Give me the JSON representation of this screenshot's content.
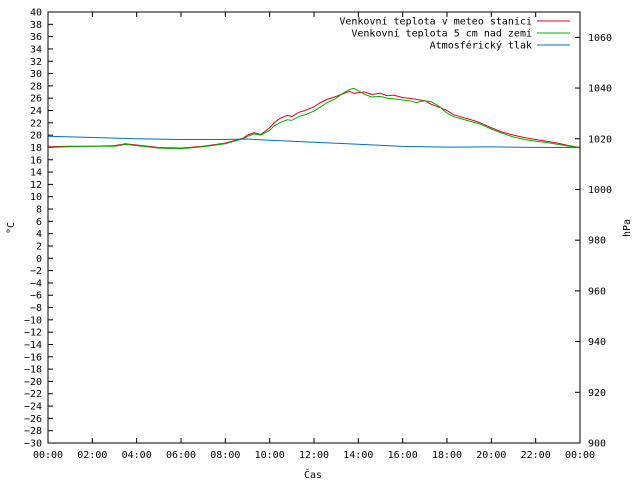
{
  "chart_data": {
    "type": "line",
    "xlabel": "Čas",
    "ylabel": "°C",
    "y2label": "hPa",
    "x_ticks": [
      "00:00",
      "02:00",
      "04:00",
      "06:00",
      "08:00",
      "10:00",
      "12:00",
      "14:00",
      "16:00",
      "18:00",
      "20:00",
      "22:00",
      "00:00"
    ],
    "xlim_hours": [
      0,
      24
    ],
    "ylim": [
      -30,
      40
    ],
    "y_ticks": [
      40,
      38,
      36,
      34,
      32,
      30,
      28,
      26,
      24,
      22,
      20,
      18,
      16,
      14,
      12,
      10,
      8,
      6,
      4,
      2,
      0,
      -2,
      -4,
      -6,
      -8,
      -10,
      -12,
      -14,
      -16,
      -18,
      -20,
      -22,
      -24,
      -26,
      -28,
      -30
    ],
    "y2lim": [
      900,
      1070
    ],
    "y2_ticks": [
      1060,
      1040,
      1020,
      1000,
      980,
      960,
      940,
      920,
      900
    ],
    "legend_position": "top-right",
    "series": [
      {
        "name": "Venkovní teplota v meteo stanici",
        "color": "#e0001f",
        "axis": "left",
        "x": [
          0,
          1,
          2,
          3,
          3.5,
          4,
          5,
          6,
          7,
          8,
          8.8,
          9,
          9.3,
          9.6,
          10,
          10.2,
          10.5,
          10.8,
          11,
          11.3,
          11.6,
          12,
          12.3,
          12.6,
          13,
          13.3,
          13.6,
          13.8,
          14,
          14.3,
          14.6,
          15,
          15.3,
          15.6,
          16,
          16.3,
          16.6,
          17,
          17.3,
          17.6,
          18,
          18.3,
          18.6,
          19,
          19.5,
          20,
          20.5,
          21,
          21.5,
          22,
          22.5,
          23,
          23.5,
          24
        ],
        "y": [
          18.1,
          18.2,
          18.2,
          18.3,
          18.6,
          18.4,
          18.0,
          17.9,
          18.2,
          18.7,
          19.5,
          20.0,
          20.4,
          20.1,
          21.2,
          22.0,
          22.8,
          23.2,
          23.0,
          23.7,
          24.0,
          24.6,
          25.3,
          25.8,
          26.3,
          26.7,
          27.1,
          26.8,
          26.9,
          27.0,
          26.6,
          26.8,
          26.4,
          26.5,
          26.1,
          26.0,
          25.8,
          25.6,
          25.0,
          24.6,
          24.0,
          23.3,
          23.0,
          22.6,
          22.0,
          21.2,
          20.5,
          20.0,
          19.6,
          19.3,
          19.0,
          18.7,
          18.3,
          18.0
        ]
      },
      {
        "name": "Venkovní teplota 5 cm nad zemí",
        "color": "#00b000",
        "axis": "left",
        "x": [
          0,
          1,
          2,
          3,
          3.5,
          4,
          5,
          6,
          7,
          8,
          8.8,
          9,
          9.3,
          9.6,
          10,
          10.2,
          10.5,
          10.8,
          11,
          11.3,
          11.6,
          12,
          12.3,
          12.6,
          13,
          13.3,
          13.6,
          13.8,
          14,
          14.3,
          14.6,
          15,
          15.3,
          15.6,
          16,
          16.3,
          16.6,
          17,
          17.3,
          17.6,
          18,
          18.3,
          18.6,
          19,
          19.5,
          20,
          20.5,
          21,
          21.5,
          22,
          22.5,
          23,
          23.5,
          24
        ],
        "y": [
          18.0,
          18.1,
          18.2,
          18.2,
          18.5,
          18.3,
          17.9,
          17.8,
          18.1,
          18.6,
          19.4,
          19.8,
          20.2,
          20.0,
          20.8,
          21.5,
          22.1,
          22.5,
          22.4,
          23.0,
          23.3,
          23.9,
          24.6,
          25.3,
          26.0,
          26.8,
          27.4,
          27.6,
          27.2,
          26.6,
          26.2,
          26.3,
          26.0,
          25.9,
          25.7,
          25.6,
          25.3,
          25.6,
          25.4,
          24.8,
          23.6,
          23.0,
          22.7,
          22.3,
          21.8,
          21.0,
          20.3,
          19.7,
          19.3,
          19.0,
          18.8,
          18.5,
          18.2,
          18.0
        ]
      },
      {
        "name": "Atmosférický tlak",
        "color": "#0070c8",
        "axis": "right",
        "x": [
          0,
          2,
          4,
          6,
          8,
          9,
          10,
          12,
          14,
          16,
          18,
          20,
          22,
          24
        ],
        "y": [
          1021.0,
          1020.5,
          1020.0,
          1019.7,
          1019.7,
          1019.9,
          1019.4,
          1018.6,
          1017.8,
          1017.0,
          1016.7,
          1016.8,
          1016.6,
          1016.5
        ]
      }
    ]
  }
}
